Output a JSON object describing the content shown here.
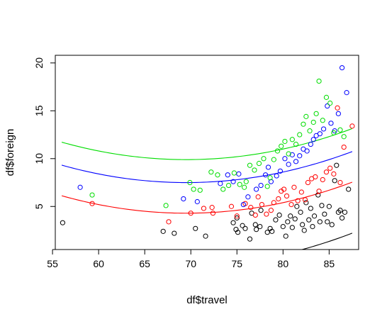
{
  "chart_data": {
    "type": "scatter",
    "title": "",
    "xlabel": "df$travel",
    "ylabel": "df$foreign",
    "xlim": [
      55.3,
      88.2
    ],
    "ylim": [
      0.5,
      20.8
    ],
    "xticks": [
      55,
      60,
      65,
      70,
      75,
      80,
      85
    ],
    "yticks": [
      5,
      10,
      15,
      20
    ],
    "grid": false,
    "legend": "none",
    "series": [
      {
        "color": "#000000",
        "points": [
          [
            56.1,
            3.3
          ],
          [
            67.0,
            2.4
          ],
          [
            68.2,
            2.2
          ],
          [
            70.5,
            2.7
          ],
          [
            71.6,
            1.9
          ],
          [
            74.6,
            3.3
          ],
          [
            74.9,
            2.6
          ],
          [
            75.0,
            3.8
          ],
          [
            75.1,
            2.3
          ],
          [
            75.6,
            3.0
          ],
          [
            75.9,
            2.7
          ],
          [
            76.4,
            1.6
          ],
          [
            76.6,
            4.3
          ],
          [
            77.0,
            3.1
          ],
          [
            77.1,
            2.6
          ],
          [
            77.5,
            2.9
          ],
          [
            77.6,
            4.6
          ],
          [
            78.3,
            2.3
          ],
          [
            78.6,
            2.7
          ],
          [
            78.8,
            2.4
          ],
          [
            79.2,
            3.6
          ],
          [
            79.6,
            4.1
          ],
          [
            80.0,
            2.9
          ],
          [
            80.3,
            1.9
          ],
          [
            80.5,
            3.4
          ],
          [
            80.8,
            4.0
          ],
          [
            81.0,
            2.8
          ],
          [
            81.3,
            3.7
          ],
          [
            81.5,
            5.0
          ],
          [
            81.9,
            4.4
          ],
          [
            82.1,
            3.1
          ],
          [
            82.3,
            2.5
          ],
          [
            82.5,
            5.4
          ],
          [
            82.8,
            3.6
          ],
          [
            83.0,
            4.8
          ],
          [
            83.2,
            2.9
          ],
          [
            83.4,
            4.0
          ],
          [
            83.8,
            6.2
          ],
          [
            84.0,
            3.4
          ],
          [
            84.2,
            5.1
          ],
          [
            84.5,
            4.2
          ],
          [
            84.8,
            3.4
          ],
          [
            85.0,
            5.0
          ],
          [
            85.3,
            3.1
          ],
          [
            85.6,
            7.7
          ],
          [
            85.8,
            9.3
          ],
          [
            86.0,
            4.4
          ],
          [
            86.2,
            4.6
          ],
          [
            86.4,
            3.8
          ],
          [
            86.7,
            4.4
          ],
          [
            87.1,
            6.8
          ]
        ]
      },
      {
        "color": "#ff0000",
        "points": [
          [
            59.3,
            5.3
          ],
          [
            67.6,
            3.4
          ],
          [
            70.0,
            4.3
          ],
          [
            71.4,
            4.8
          ],
          [
            72.3,
            4.9
          ],
          [
            72.4,
            4.3
          ],
          [
            74.4,
            5.0
          ],
          [
            75.0,
            4.0
          ],
          [
            75.9,
            5.3
          ],
          [
            76.5,
            4.9
          ],
          [
            77.0,
            4.1
          ],
          [
            77.3,
            6.0
          ],
          [
            77.7,
            5.2
          ],
          [
            78.2,
            4.2
          ],
          [
            78.7,
            4.6
          ],
          [
            79.0,
            5.4
          ],
          [
            79.5,
            5.8
          ],
          [
            79.8,
            6.6
          ],
          [
            80.1,
            6.8
          ],
          [
            80.4,
            6.1
          ],
          [
            80.9,
            5.2
          ],
          [
            81.2,
            7.0
          ],
          [
            81.6,
            5.6
          ],
          [
            82.0,
            6.5
          ],
          [
            82.4,
            5.7
          ],
          [
            82.7,
            7.5
          ],
          [
            83.1,
            7.9
          ],
          [
            83.5,
            8.1
          ],
          [
            83.9,
            6.6
          ],
          [
            84.3,
            7.8
          ],
          [
            84.7,
            8.6
          ],
          [
            85.1,
            9.0
          ],
          [
            85.5,
            8.4
          ],
          [
            85.9,
            15.3
          ],
          [
            86.2,
            7.5
          ],
          [
            86.6,
            11.2
          ],
          [
            87.5,
            13.4
          ]
        ]
      },
      {
        "color": "#0000ff",
        "points": [
          [
            58.0,
            7.0
          ],
          [
            69.2,
            5.8
          ],
          [
            70.7,
            5.5
          ],
          [
            73.2,
            7.4
          ],
          [
            74.0,
            8.3
          ],
          [
            74.6,
            7.6
          ],
          [
            75.2,
            8.4
          ],
          [
            75.7,
            5.2
          ],
          [
            76.2,
            6.0
          ],
          [
            77.1,
            6.8
          ],
          [
            77.6,
            7.2
          ],
          [
            78.1,
            8.3
          ],
          [
            78.4,
            9.1
          ],
          [
            78.7,
            7.6
          ],
          [
            79.3,
            8.2
          ],
          [
            79.7,
            8.7
          ],
          [
            80.2,
            10.0
          ],
          [
            80.6,
            9.4
          ],
          [
            81.0,
            10.4
          ],
          [
            81.4,
            9.7
          ],
          [
            81.8,
            10.3
          ],
          [
            82.2,
            11.0
          ],
          [
            82.6,
            10.8
          ],
          [
            83.0,
            11.5
          ],
          [
            83.3,
            12.0
          ],
          [
            83.6,
            12.4
          ],
          [
            84.0,
            12.6
          ],
          [
            84.4,
            13.1
          ],
          [
            84.8,
            15.5
          ],
          [
            85.2,
            13.7
          ],
          [
            85.6,
            12.9
          ],
          [
            86.0,
            14.7
          ],
          [
            86.4,
            19.5
          ],
          [
            86.9,
            16.9
          ]
        ]
      },
      {
        "color": "#00dd00",
        "points": [
          [
            59.3,
            6.2
          ],
          [
            67.3,
            5.1
          ],
          [
            69.9,
            7.5
          ],
          [
            70.3,
            6.8
          ],
          [
            71.0,
            6.7
          ],
          [
            72.2,
            8.6
          ],
          [
            72.9,
            8.3
          ],
          [
            73.5,
            6.8
          ],
          [
            74.1,
            7.2
          ],
          [
            74.7,
            8.5
          ],
          [
            75.3,
            7.3
          ],
          [
            75.8,
            7.0
          ],
          [
            76.0,
            7.6
          ],
          [
            76.4,
            9.3
          ],
          [
            76.9,
            8.8
          ],
          [
            77.4,
            9.5
          ],
          [
            77.9,
            10.0
          ],
          [
            78.3,
            7.1
          ],
          [
            78.6,
            8.0
          ],
          [
            79.0,
            9.9
          ],
          [
            79.4,
            10.8
          ],
          [
            79.8,
            11.3
          ],
          [
            80.2,
            11.8
          ],
          [
            80.6,
            10.5
          ],
          [
            81.0,
            12.0
          ],
          [
            81.4,
            11.5
          ],
          [
            81.8,
            12.5
          ],
          [
            82.2,
            13.6
          ],
          [
            82.5,
            14.4
          ],
          [
            82.9,
            12.9
          ],
          [
            83.3,
            13.8
          ],
          [
            83.6,
            14.7
          ],
          [
            83.9,
            18.1
          ],
          [
            84.3,
            14.0
          ],
          [
            84.7,
            16.4
          ],
          [
            85.1,
            15.8
          ],
          [
            85.5,
            12.7
          ],
          [
            86.2,
            13.0
          ],
          [
            86.6,
            12.3
          ]
        ]
      }
    ],
    "lines": [
      {
        "color": "#000000",
        "a": 46.4,
        "b": -1.38,
        "c": 0.01,
        "x0": 56,
        "x1": 87.5
      },
      {
        "color": "#ff0000",
        "a": 52.6,
        "b": -1.39,
        "c": 0.01,
        "x0": 56,
        "x1": 87.5
      },
      {
        "color": "#0000ff",
        "a": 55.8,
        "b": -1.39,
        "c": 0.01,
        "x0": 56,
        "x1": 87.5
      },
      {
        "color": "#00dd00",
        "a": 58.2,
        "b": -1.39,
        "c": 0.01,
        "x0": 56,
        "x1": 87.5
      }
    ]
  }
}
